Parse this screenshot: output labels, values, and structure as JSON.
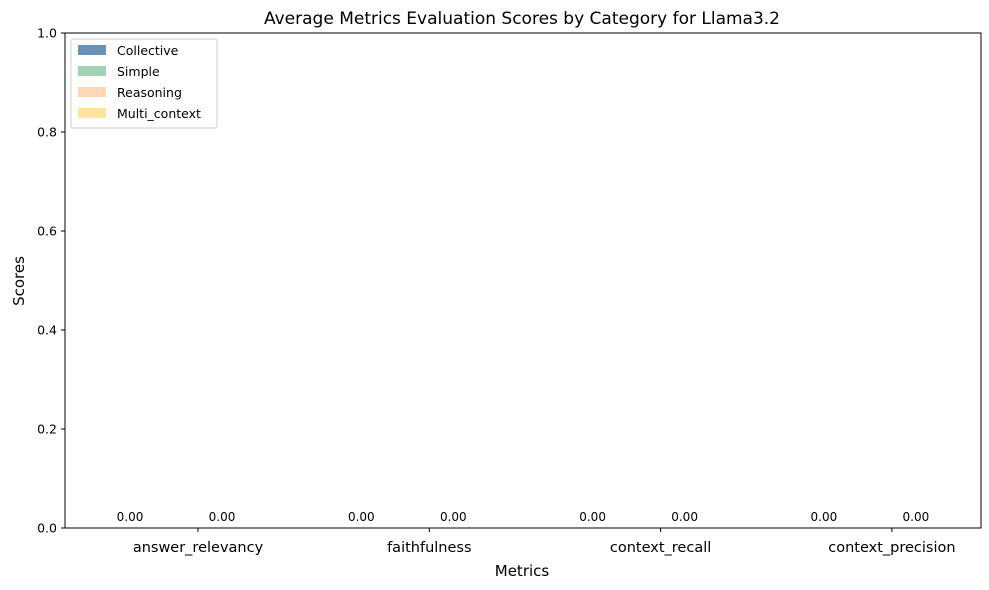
{
  "chart_data": {
    "type": "bar",
    "title": "Average Metrics Evaluation Scores by Category for Llama3.2",
    "xlabel": "Metrics",
    "ylabel": "Scores",
    "ylim": [
      0,
      1
    ],
    "yticks": [
      "0.0",
      "0.2",
      "0.4",
      "0.6",
      "0.8",
      "1.0"
    ],
    "categories": [
      "answer_relevancy",
      "faithfulness",
      "context_recall",
      "context_precision"
    ],
    "series": [
      {
        "name": "Collective",
        "color": "#4f7ea9",
        "values": [
          0,
          0,
          0,
          0
        ]
      },
      {
        "name": "Simple",
        "color": "#90cba8",
        "values": [
          0,
          0,
          0,
          0
        ]
      },
      {
        "name": "Reasoning",
        "color": "#fdd0ac",
        "values": [
          0,
          0,
          0,
          0
        ]
      },
      {
        "name": "Multi_context",
        "color": "#ffe08a",
        "values": [
          0,
          0,
          0,
          0
        ]
      }
    ],
    "data_labels": [
      [
        "0.00",
        "0.00"
      ],
      [
        "0.00",
        "0.00"
      ],
      [
        "0.00",
        "0.00"
      ],
      [
        "0.00",
        "0.00"
      ]
    ],
    "legend_position": "top-left",
    "grid": false
  }
}
